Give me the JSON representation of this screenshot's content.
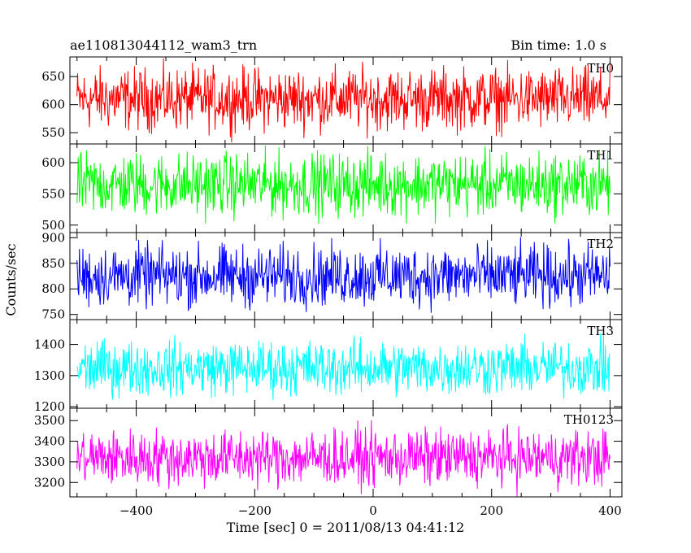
{
  "chart_data": {
    "type": "line",
    "title": "ae110813044112_wam3_trn",
    "bin_label": "Bin time: 1.0 s",
    "xlabel": "Time [sec] 0 = 2011/08/13 04:41:12",
    "ylabel": "Counts/sec",
    "xlim": [
      -512,
      420
    ],
    "data_xrange": [
      -500,
      400
    ],
    "x_ticks": [
      -400,
      -200,
      0,
      200,
      400
    ],
    "x_tick_labels": [
      "−400",
      "−200",
      "0",
      "200",
      "400"
    ],
    "panels": [
      {
        "name": "TH0",
        "color": "#ff0000",
        "ylim": [
          530,
          685
        ],
        "mean": 610,
        "spread": 60,
        "y_ticks": [
          550,
          600,
          650
        ],
        "y_tick_labels": [
          "550",
          "600",
          "650"
        ]
      },
      {
        "name": "TH1",
        "color": "#00ff00",
        "ylim": [
          488,
          630
        ],
        "mean": 565,
        "spread": 55,
        "y_ticks": [
          500,
          550,
          600
        ],
        "y_tick_labels": [
          "500",
          "550",
          "600"
        ]
      },
      {
        "name": "TH2",
        "color": "#0000ff",
        "ylim": [
          740,
          910
        ],
        "mean": 825,
        "spread": 65,
        "y_ticks": [
          750,
          800,
          850,
          900
        ],
        "y_tick_labels": [
          "750",
          "800",
          "850",
          "900"
        ]
      },
      {
        "name": "TH3",
        "color": "#00ffff",
        "ylim": [
          1195,
          1480
        ],
        "mean": 1325,
        "spread": 95,
        "y_ticks": [
          1200,
          1300,
          1400
        ],
        "y_tick_labels": [
          "1200",
          "1300",
          "1400"
        ]
      },
      {
        "name": "TH0123",
        "color": "#ff00ff",
        "ylim": [
          3130,
          3560
        ],
        "mean": 3320,
        "spread": 150,
        "y_ticks": [
          3200,
          3300,
          3400,
          3500
        ],
        "y_tick_labels": [
          "3200",
          "3300",
          "3400",
          "3500"
        ]
      }
    ]
  }
}
